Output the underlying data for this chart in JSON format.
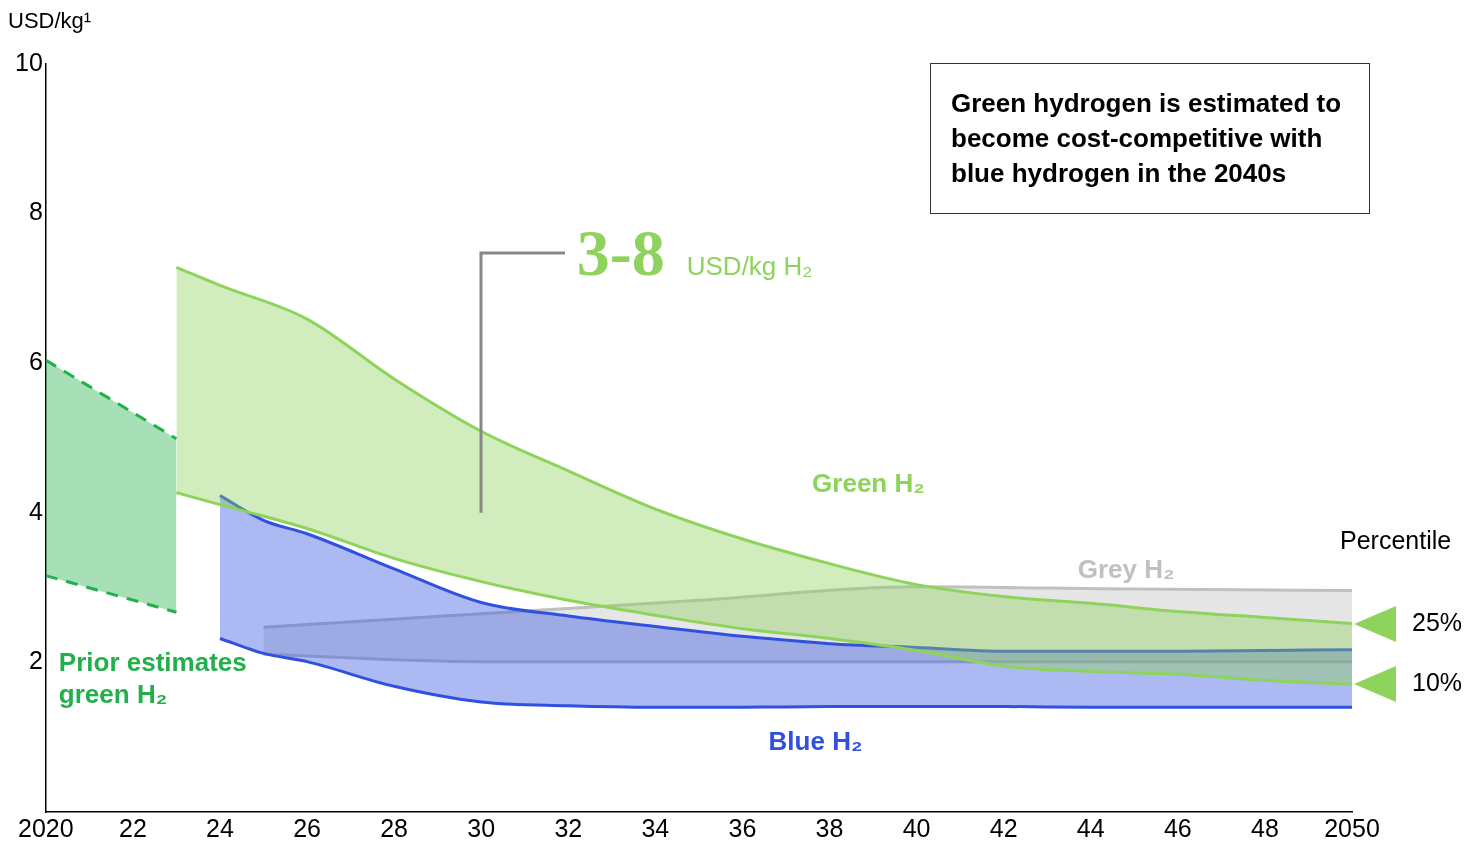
{
  "chart_data": {
    "type": "area",
    "ylabel": "USD/kg¹",
    "legend_title": "Percentile",
    "annotations": [
      "Green hydrogen is estimated to become cost-competitive with blue hydrogen in the 2040s",
      "3-8 USD/kg H₂",
      {
        "text": "25%",
        "x": 2050,
        "y": 2.52
      },
      {
        "text": "10%",
        "x": 2050,
        "y": 1.71
      }
    ],
    "series": [
      {
        "type": "line",
        "color": "#22b04b",
        "line_style": "dashed",
        "x": [
          2020,
          2023
        ],
        "values": [
          3.16,
          2.67
        ]
      },
      {
        "name": "Prior estimates green H₂",
        "color": "#22b04b",
        "line_style": "dashed",
        "x": [
          2020,
          2023
        ],
        "values": [
          6.04,
          4.99
        ]
      },
      {
        "type": "line",
        "color": "#8ed35b",
        "x": [
          2023,
          2024,
          2026,
          2028,
          2030,
          2032,
          2034,
          2036,
          2038,
          2040,
          2042,
          2044,
          2046,
          2048,
          2050
        ],
        "values": [
          4.27,
          4.11,
          3.79,
          3.39,
          3.08,
          2.83,
          2.63,
          2.45,
          2.32,
          2.16,
          1.95,
          1.88,
          1.84,
          1.76,
          1.71
        ]
      },
      {
        "name": "Green H₂",
        "color": "#8ed35b",
        "x": [
          2023,
          2024,
          2026,
          2028,
          2030,
          2032,
          2034,
          2036,
          2038,
          2040,
          2042,
          2044,
          2046,
          2048,
          2050
        ],
        "values": [
          7.28,
          7.04,
          6.59,
          5.79,
          5.09,
          4.56,
          4.05,
          3.65,
          3.32,
          3.04,
          2.88,
          2.79,
          2.68,
          2.6,
          2.52
        ]
      },
      {
        "type": "line",
        "color": "#3050e0",
        "x": [
          2024,
          2025,
          2026,
          2028,
          2030,
          2032,
          2034,
          2036,
          2038,
          2040,
          2042,
          2044,
          2046,
          2048,
          2050
        ],
        "values": [
          2.32,
          2.12,
          2.01,
          1.68,
          1.47,
          1.42,
          1.4,
          1.4,
          1.41,
          1.41,
          1.41,
          1.4,
          1.4,
          1.4,
          1.4
        ]
      },
      {
        "name": "Blue H₂",
        "color": "#3050e0",
        "x": [
          2024,
          2025,
          2026,
          2028,
          2030,
          2032,
          2034,
          2036,
          2038,
          2040,
          2042,
          2044,
          2046,
          2048,
          2050
        ],
        "values": [
          4.23,
          3.9,
          3.72,
          3.25,
          2.8,
          2.62,
          2.48,
          2.35,
          2.25,
          2.2,
          2.15,
          2.15,
          2.15,
          2.16,
          2.17
        ]
      },
      {
        "type": "line",
        "color": "#c0c0c0",
        "x": [
          2025,
          2030,
          2035,
          2040,
          2045,
          2050
        ],
        "values": [
          2.11,
          2.01,
          2.01,
          2.01,
          2.01,
          2.01
        ]
      },
      {
        "name": "Grey H₂",
        "color": "#c0c0c0",
        "x": [
          2025,
          2030,
          2035,
          2040,
          2045,
          2050
        ],
        "values": [
          2.47,
          2.65,
          2.83,
          3.01,
          2.98,
          2.96
        ]
      }
    ],
    "xlim": [
      2020,
      2050
    ],
    "xticks": [
      2020,
      {
        "value": 2022,
        "label": "22"
      },
      {
        "value": 2024,
        "label": "24"
      },
      {
        "value": 2026,
        "label": "26"
      },
      {
        "value": 2028,
        "label": "28"
      },
      {
        "value": 2030,
        "label": "30"
      },
      {
        "value": 2032,
        "label": "32"
      },
      {
        "value": 2034,
        "label": "34"
      },
      {
        "value": 2036,
        "label": "36"
      },
      {
        "value": 2038,
        "label": "38"
      },
      {
        "value": 2040,
        "label": "40"
      },
      {
        "value": 2042,
        "label": "42"
      },
      {
        "value": 2044,
        "label": "44"
      },
      {
        "value": 2046,
        "label": "46"
      },
      {
        "value": 2048,
        "label": "48"
      },
      2050
    ],
    "ylim": [
      0,
      10
    ],
    "yticks": [
      2,
      4,
      6,
      8,
      10
    ],
    "grid": false,
    "legend": false
  }
}
